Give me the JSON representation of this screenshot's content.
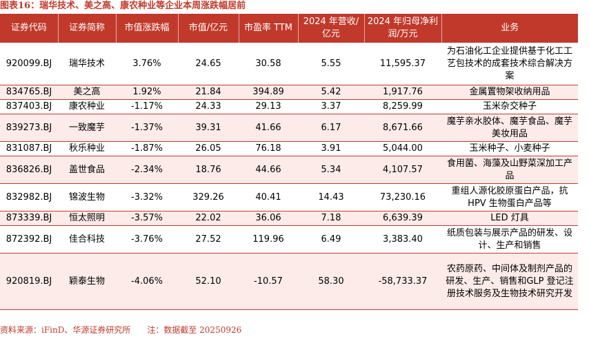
{
  "title": "图表16：瑞华技术、美之高、康农种业等企业本周涨跌幅居前",
  "headers": [
    "证券代码",
    "证券简称",
    "市值涨跌幅",
    "市值/亿元",
    "市盈率 TTM",
    "2024 年营收/亿元",
    "2024 年归母净利润/万元",
    "业务"
  ],
  "rows": [
    {
      "code": "920099.BJ",
      "name": "瑞华技术",
      "chg": "3.76%",
      "cap": "24.65",
      "pe": "30.58",
      "rev": "5.55",
      "np": "11,595.37",
      "biz": "为石油化工企业提供基于化工工艺包技术的成套技术综合解决方案",
      "h": 62
    },
    {
      "code": "834765.BJ",
      "name": "美之高",
      "chg": "1.92%",
      "cap": "21.84",
      "pe": "394.89",
      "rev": "5.42",
      "np": "1,917.76",
      "biz": "金属置物架收纳用品",
      "h": 21
    },
    {
      "code": "837403.BJ",
      "name": "康农种业",
      "chg": "-1.17%",
      "cap": "24.33",
      "pe": "29.13",
      "rev": "3.37",
      "np": "8,259.99",
      "biz": "玉米杂交种子",
      "h": 21
    },
    {
      "code": "839273.BJ",
      "name": "一致魔芋",
      "chg": "-1.37%",
      "cap": "39.31",
      "pe": "41.66",
      "rev": "6.17",
      "np": "8,671.66",
      "biz": "魔芋亲水胶体、魔芋食品、魔芋美妆用品",
      "h": 40
    },
    {
      "code": "831087.BJ",
      "name": "秋乐种业",
      "chg": "-1.87%",
      "cap": "26.05",
      "pe": "76.18",
      "rev": "3.91",
      "np": "5,044.00",
      "biz": "玉米种子、小麦种子",
      "h": 21
    },
    {
      "code": "836826.BJ",
      "name": "盖世食品",
      "chg": "-2.34%",
      "cap": "18.76",
      "pe": "44.66",
      "rev": "5.34",
      "np": "4,107.57",
      "biz": "食用菌、海藻及山野菜深加工产品",
      "h": 40
    },
    {
      "code": "832982.BJ",
      "name": "锦波生物",
      "chg": "-3.32%",
      "cap": "329.26",
      "pe": "40.41",
      "rev": "14.43",
      "np": "73,230.16",
      "biz": "重组人源化胶原蛋白产品，抗 HPV 生物蛋白产品等",
      "h": 40
    },
    {
      "code": "873339.BJ",
      "name": "恒太照明",
      "chg": "-3.57%",
      "cap": "22.02",
      "pe": "36.06",
      "rev": "7.18",
      "np": "6,639.39",
      "biz": "LED 灯具",
      "h": 21
    },
    {
      "code": "872392.BJ",
      "name": "佳合科技",
      "chg": "-3.76%",
      "cap": "27.52",
      "pe": "119.96",
      "rev": "6.49",
      "np": "3,383.40",
      "biz": "纸质包装与展示产品的研发、设计、生产和销售",
      "h": 40
    },
    {
      "code": "920819.BJ",
      "name": "颖泰生物",
      "chg": "-4.06%",
      "cap": "52.10",
      "pe": "-10.57",
      "rev": "58.30",
      "np": "-58,733.37",
      "biz": "农药原药、中间体及制剂产品的研发、生产、销售和GLP 登记注册技术服务及生物技术研究开发",
      "h": 82
    }
  ],
  "source": "资料来源：iFinD、华源证券研究所　　注：数据截至 20250926"
}
